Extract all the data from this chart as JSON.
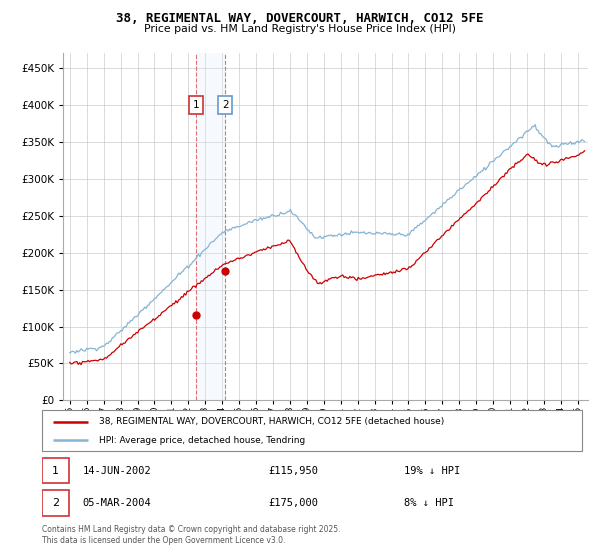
{
  "title": "38, REGIMENTAL WAY, DOVERCOURT, HARWICH, CO12 5FE",
  "subtitle": "Price paid vs. HM Land Registry's House Price Index (HPI)",
  "ylim": [
    0,
    470000
  ],
  "yticks": [
    0,
    50000,
    100000,
    150000,
    200000,
    250000,
    300000,
    350000,
    400000,
    450000
  ],
  "legend_line1": "38, REGIMENTAL WAY, DOVERCOURT, HARWICH, CO12 5FE (detached house)",
  "legend_line2": "HPI: Average price, detached house, Tendring",
  "sale1_date": "14-JUN-2002",
  "sale1_price": "£115,950",
  "sale1_hpi": "19% ↓ HPI",
  "sale2_date": "05-MAR-2004",
  "sale2_price": "£175,000",
  "sale2_hpi": "8% ↓ HPI",
  "footer": "Contains HM Land Registry data © Crown copyright and database right 2025.\nThis data is licensed under the Open Government Licence v3.0.",
  "sale1_year": 2002.45,
  "sale1_value": 115950,
  "sale2_year": 2004.18,
  "sale2_value": 175000,
  "line_color_red": "#cc0000",
  "line_color_blue": "#85b4d4",
  "background_color": "#ffffff",
  "grid_color": "#cccccc",
  "span_color": "#ddeeff",
  "vline_color": "#e06060"
}
